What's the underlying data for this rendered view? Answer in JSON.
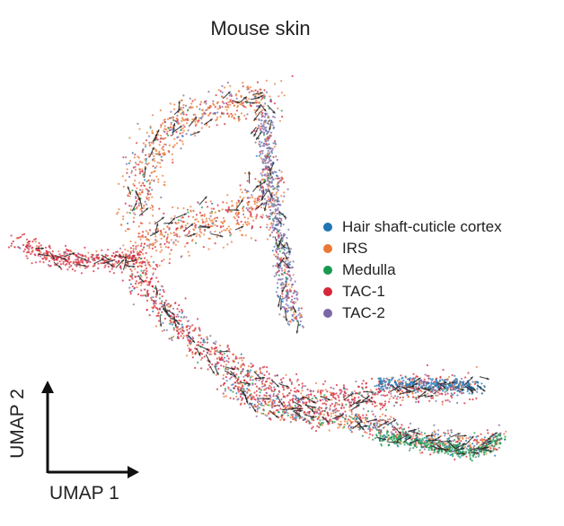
{
  "chart_data": {
    "type": "scatter",
    "title": "Mouse skin",
    "xlabel": "UMAP 1",
    "ylabel": "UMAP 2",
    "grid": false,
    "legend_position": "right",
    "overlay": "velocity-arrows",
    "series": [
      {
        "name": "Hair shaft-cuticle cortex",
        "color": "#1f77b4"
      },
      {
        "name": "IRS",
        "color": "#e87a35"
      },
      {
        "name": "Medulla",
        "color": "#1a9850"
      },
      {
        "name": "TAC-1",
        "color": "#d62839"
      },
      {
        "name": "TAC-2",
        "color": "#7b68a6"
      }
    ]
  }
}
